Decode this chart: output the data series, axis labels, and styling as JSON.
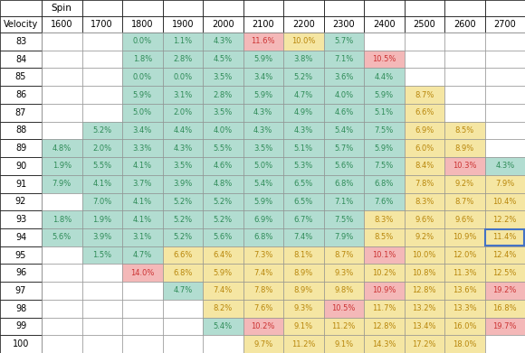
{
  "spin_values": [
    1600,
    1700,
    1800,
    1900,
    2000,
    2100,
    2200,
    2300,
    2400,
    2500,
    2600,
    2700
  ],
  "velocity_values": [
    83,
    84,
    85,
    86,
    87,
    88,
    89,
    90,
    91,
    92,
    93,
    94,
    95,
    96,
    97,
    98,
    99,
    100
  ],
  "table_data": {
    "83": [
      null,
      null,
      "0.0%",
      "1.1%",
      "4.3%",
      "11.6%",
      "10.0%",
      "5.7%",
      null,
      null,
      null,
      null
    ],
    "84": [
      null,
      null,
      "1.8%",
      "2.8%",
      "4.5%",
      "5.9%",
      "3.8%",
      "7.1%",
      "10.5%",
      null,
      null,
      null
    ],
    "85": [
      null,
      null,
      "0.0%",
      "0.0%",
      "3.5%",
      "3.4%",
      "5.2%",
      "3.6%",
      "4.4%",
      null,
      null,
      null
    ],
    "86": [
      null,
      null,
      "5.9%",
      "3.1%",
      "2.8%",
      "5.9%",
      "4.7%",
      "4.0%",
      "5.9%",
      "8.7%",
      null,
      null
    ],
    "87": [
      null,
      null,
      "5.0%",
      "2.0%",
      "3.5%",
      "4.3%",
      "4.9%",
      "4.6%",
      "5.1%",
      "6.6%",
      null,
      null
    ],
    "88": [
      null,
      "5.2%",
      "3.4%",
      "4.4%",
      "4.0%",
      "4.3%",
      "4.3%",
      "5.4%",
      "7.5%",
      "6.9%",
      "8.5%",
      null
    ],
    "89": [
      "4.8%",
      "2.0%",
      "3.3%",
      "4.3%",
      "5.5%",
      "3.5%",
      "5.1%",
      "5.7%",
      "5.9%",
      "6.0%",
      "8.9%",
      null
    ],
    "90": [
      "1.9%",
      "5.5%",
      "4.1%",
      "3.5%",
      "4.6%",
      "5.0%",
      "5.3%",
      "5.6%",
      "7.5%",
      "8.4%",
      "10.3%",
      "4.3%"
    ],
    "91": [
      "7.9%",
      "4.1%",
      "3.7%",
      "3.9%",
      "4.8%",
      "5.4%",
      "6.5%",
      "6.8%",
      "6.8%",
      "7.8%",
      "9.2%",
      "7.9%"
    ],
    "92": [
      null,
      "7.0%",
      "4.1%",
      "5.2%",
      "5.2%",
      "5.9%",
      "6.5%",
      "7.1%",
      "7.6%",
      "8.3%",
      "8.7%",
      "10.4%"
    ],
    "93": [
      "1.8%",
      "1.9%",
      "4.1%",
      "5.2%",
      "5.2%",
      "6.9%",
      "6.7%",
      "7.5%",
      "8.3%",
      "9.6%",
      "9.6%",
      "12.2%"
    ],
    "94": [
      "5.6%",
      "3.9%",
      "3.1%",
      "5.2%",
      "5.6%",
      "6.8%",
      "7.4%",
      "7.9%",
      "8.5%",
      "9.2%",
      "10.9%",
      "11.4%"
    ],
    "95": [
      null,
      "1.5%",
      "4.7%",
      "6.6%",
      "6.4%",
      "7.3%",
      "8.1%",
      "8.7%",
      "10.1%",
      "10.0%",
      "12.0%",
      "12.4%"
    ],
    "96": [
      null,
      null,
      "14.0%",
      "6.8%",
      "5.9%",
      "7.4%",
      "8.9%",
      "9.3%",
      "10.2%",
      "10.8%",
      "11.3%",
      "12.5%"
    ],
    "97": [
      null,
      null,
      null,
      "4.7%",
      "7.4%",
      "7.8%",
      "8.9%",
      "9.8%",
      "10.9%",
      "12.8%",
      "13.6%",
      "19.2%"
    ],
    "98": [
      null,
      null,
      null,
      null,
      "8.2%",
      "7.6%",
      "9.3%",
      "10.5%",
      "11.7%",
      "13.2%",
      "13.3%",
      "16.8%"
    ],
    "99": [
      null,
      null,
      null,
      null,
      "5.4%",
      "10.2%",
      "9.1%",
      "11.2%",
      "12.8%",
      "13.4%",
      "16.0%",
      "19.7%"
    ],
    "100": [
      null,
      null,
      null,
      null,
      null,
      "9.7%",
      "11.2%",
      "9.1%",
      "14.3%",
      "17.2%",
      "18.0%",
      null
    ]
  },
  "cell_colors": {
    "83": [
      null,
      null,
      "teal",
      "teal",
      "teal",
      "pink",
      "yellow",
      "teal",
      null,
      null,
      null,
      null
    ],
    "84": [
      null,
      null,
      "teal",
      "teal",
      "teal",
      "teal",
      "teal",
      "teal",
      "pink",
      null,
      null,
      null
    ],
    "85": [
      null,
      null,
      "teal",
      "teal",
      "teal",
      "teal",
      "teal",
      "teal",
      "teal",
      null,
      null,
      null
    ],
    "86": [
      null,
      null,
      "teal",
      "teal",
      "teal",
      "teal",
      "teal",
      "teal",
      "teal",
      "yellow",
      null,
      null
    ],
    "87": [
      null,
      null,
      "teal",
      "teal",
      "teal",
      "teal",
      "teal",
      "teal",
      "teal",
      "yellow",
      null,
      null
    ],
    "88": [
      null,
      "teal",
      "teal",
      "teal",
      "teal",
      "teal",
      "teal",
      "teal",
      "teal",
      "yellow",
      "yellow",
      null
    ],
    "89": [
      "teal",
      "teal",
      "teal",
      "teal",
      "teal",
      "teal",
      "teal",
      "teal",
      "teal",
      "yellow",
      "yellow",
      null
    ],
    "90": [
      "teal",
      "teal",
      "teal",
      "teal",
      "teal",
      "teal",
      "teal",
      "teal",
      "teal",
      "yellow",
      "pink",
      "teal"
    ],
    "91": [
      "teal",
      "teal",
      "teal",
      "teal",
      "teal",
      "teal",
      "teal",
      "teal",
      "teal",
      "yellow",
      "yellow",
      "yellow"
    ],
    "92": [
      null,
      "teal",
      "teal",
      "teal",
      "teal",
      "teal",
      "teal",
      "teal",
      "teal",
      "yellow",
      "yellow",
      "yellow"
    ],
    "93": [
      "teal",
      "teal",
      "teal",
      "teal",
      "teal",
      "teal",
      "teal",
      "teal",
      "yellow",
      "yellow",
      "yellow",
      "yellow"
    ],
    "94": [
      "teal",
      "teal",
      "teal",
      "teal",
      "teal",
      "teal",
      "teal",
      "teal",
      "yellow",
      "yellow",
      "yellow",
      "blue_border"
    ],
    "95": [
      null,
      "teal",
      "teal",
      "yellow",
      "yellow",
      "yellow",
      "yellow",
      "yellow",
      "pink",
      "yellow",
      "yellow",
      "yellow"
    ],
    "96": [
      null,
      null,
      "pink",
      "yellow",
      "yellow",
      "yellow",
      "yellow",
      "yellow",
      "yellow",
      "yellow",
      "yellow",
      "yellow"
    ],
    "97": [
      null,
      null,
      null,
      "teal",
      "yellow",
      "yellow",
      "yellow",
      "yellow",
      "pink",
      "yellow",
      "yellow",
      "pink"
    ],
    "98": [
      null,
      null,
      null,
      null,
      "yellow",
      "yellow",
      "yellow",
      "pink",
      "yellow",
      "yellow",
      "yellow",
      "yellow"
    ],
    "99": [
      null,
      null,
      null,
      null,
      "teal",
      "pink",
      "yellow",
      "yellow",
      "yellow",
      "yellow",
      "yellow",
      "pink"
    ],
    "100": [
      null,
      null,
      null,
      null,
      null,
      "yellow",
      "yellow",
      "yellow",
      "yellow",
      "yellow",
      "yellow",
      null
    ]
  },
  "teal_color": "#b2ddd1",
  "pink_color": "#f4b8b8",
  "yellow_color": "#f5e6a3",
  "empty_color": "#ffffff",
  "text_color_teal": "#2e8b57",
  "text_color_pink": "#cc3333",
  "text_color_yellow": "#b8860b",
  "header_text_color": "#000000",
  "n_spin": 12,
  "n_vel": 18,
  "fig_w": 5.8,
  "fig_h": 3.91,
  "dpi": 100
}
